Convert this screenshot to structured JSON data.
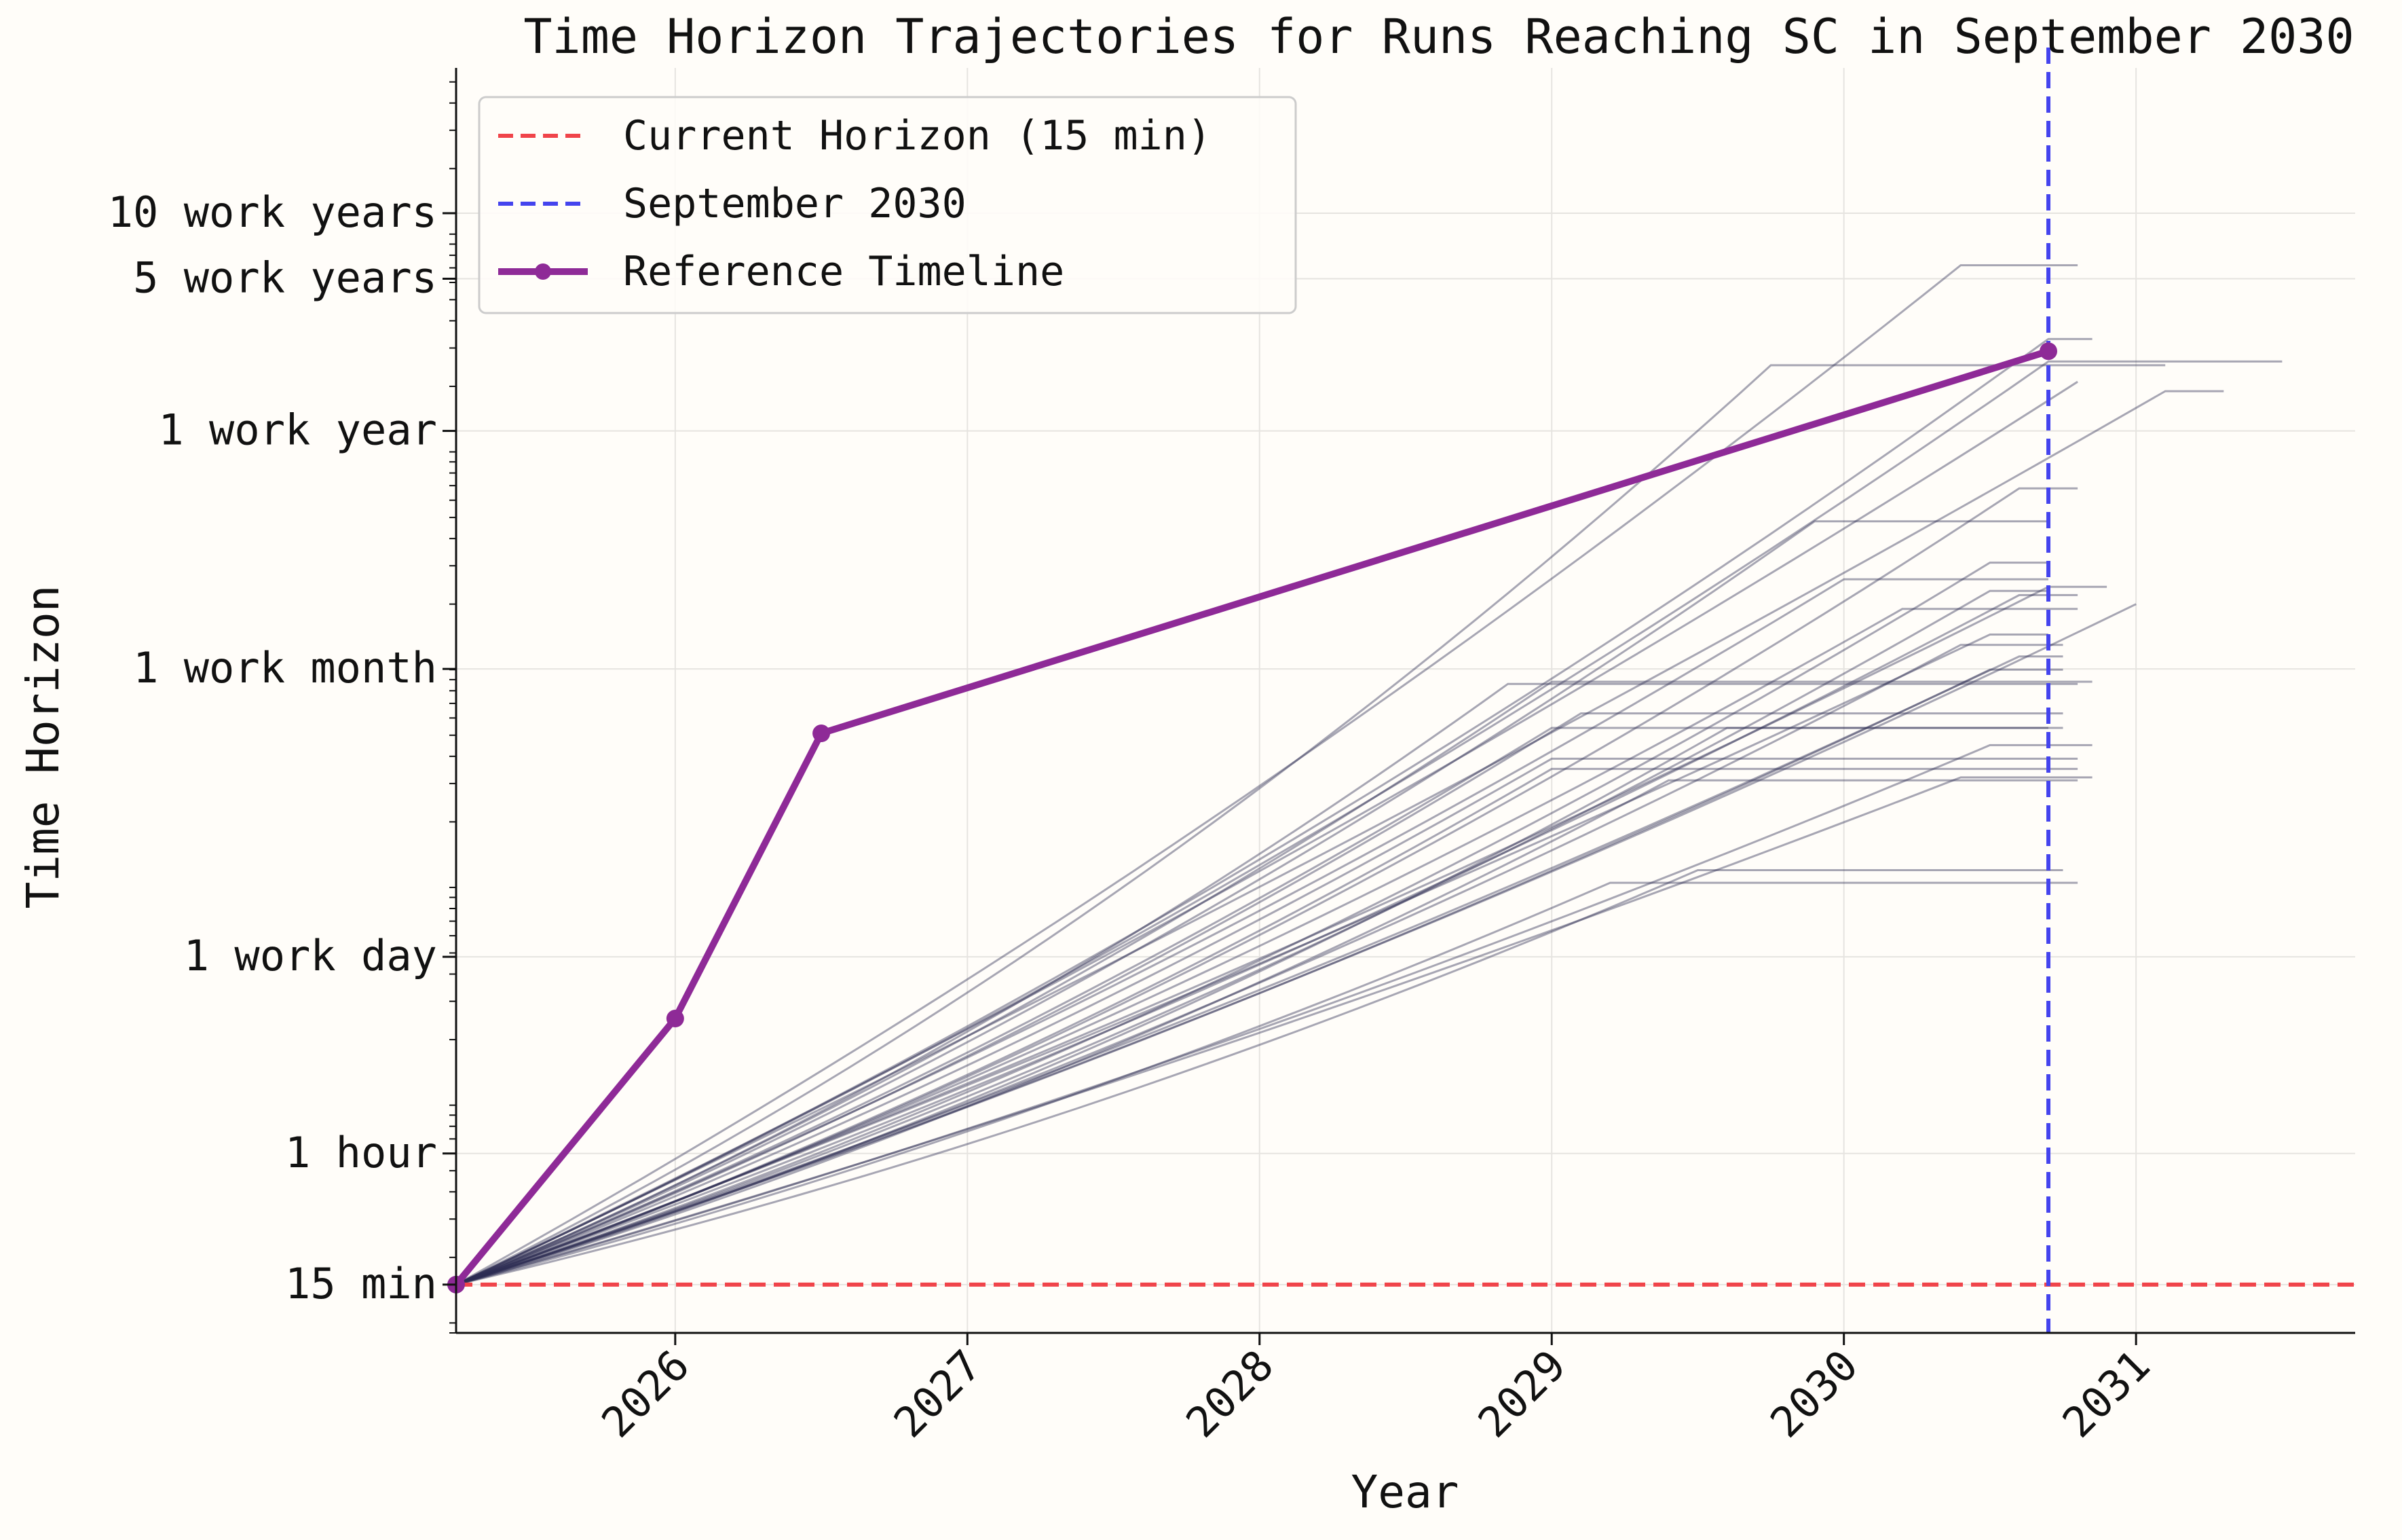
{
  "chart_data": {
    "type": "line",
    "title": "Time Horizon Trajectories for Runs Reaching SC in September 2030",
    "xlabel": "Year",
    "ylabel": "Time Horizon",
    "xlim": [
      2025.25,
      2031.75
    ],
    "ylim_minutes": [
      9.0,
      5800000
    ],
    "y_scale": "log",
    "grid": true,
    "legend_position": "top-left",
    "x_ticks": [
      {
        "value": 2026,
        "label": "2026"
      },
      {
        "value": 2027,
        "label": "2027"
      },
      {
        "value": 2028,
        "label": "2028"
      },
      {
        "value": 2029,
        "label": "2029"
      },
      {
        "value": 2030,
        "label": "2030"
      },
      {
        "value": 2031,
        "label": "2031"
      }
    ],
    "y_ticks": [
      {
        "minutes": 15,
        "label": "15 min"
      },
      {
        "minutes": 60,
        "label": "1 hour"
      },
      {
        "minutes": 480,
        "label": "1 work day"
      },
      {
        "minutes": 10080,
        "label": "1 work month"
      },
      {
        "minutes": 124800,
        "label": "1 work year"
      },
      {
        "minutes": 624000,
        "label": "5 work years"
      },
      {
        "minutes": 1248000,
        "label": "10 work years"
      }
    ],
    "legend": [
      {
        "label": "Current Horizon (15 min)",
        "style": "dashed",
        "color": "#f0444a"
      },
      {
        "label": "September 2030",
        "style": "dashed",
        "color": "#4444ee"
      },
      {
        "label": "Reference Timeline",
        "style": "solid-marker",
        "color": "#8e2a97"
      }
    ],
    "current_horizon": {
      "minutes": 15,
      "color": "#f0444a"
    },
    "target_date": {
      "x": 2030.7,
      "color": "#4444ee"
    },
    "reference_timeline": {
      "color": "#8e2a97",
      "points": [
        {
          "x": 2025.25,
          "minutes": 15
        },
        {
          "x": 2026.0,
          "minutes": 250
        },
        {
          "x": 2026.5,
          "minutes": 5100
        },
        {
          "x": 2030.7,
          "minutes": 290000
        }
      ]
    },
    "trajectories": {
      "color": "#2e2e54",
      "start": {
        "x": 2025.25,
        "minutes": 15
      },
      "runs": [
        {
          "end_x": 2030.4,
          "end_minutes": 720000,
          "flat_until": 2030.8,
          "bend": 0.18
        },
        {
          "end_x": 2029.75,
          "end_minutes": 250000,
          "flat_until": 2031.1,
          "bend": 0.3
        },
        {
          "end_x": 2030.7,
          "end_minutes": 330000,
          "flat_until": 2030.85,
          "bend": 0.22
        },
        {
          "end_x": 2030.7,
          "end_minutes": 260000,
          "flat_until": 2031.5,
          "bend": 0.2
        },
        {
          "end_x": 2030.8,
          "end_minutes": 210000,
          "flat_until": 2030.8,
          "bend": 0.15
        },
        {
          "end_x": 2031.1,
          "end_minutes": 190000,
          "flat_until": 2031.3,
          "bend": 0.1
        },
        {
          "end_x": 2030.6,
          "end_minutes": 68000,
          "flat_until": 2030.8,
          "bend": 0.3
        },
        {
          "end_x": 2029.9,
          "end_minutes": 48000,
          "flat_until": 2030.7,
          "bend": 0.25
        },
        {
          "end_x": 2030.5,
          "end_minutes": 31000,
          "flat_until": 2030.7,
          "bend": 0.3
        },
        {
          "end_x": 2030.0,
          "end_minutes": 26000,
          "flat_until": 2030.7,
          "bend": 0.2
        },
        {
          "end_x": 2030.7,
          "end_minutes": 24000,
          "flat_until": 2030.9,
          "bend": 0.15
        },
        {
          "end_x": 2030.5,
          "end_minutes": 23000,
          "flat_until": 2030.7,
          "bend": 0.28
        },
        {
          "end_x": 2031.0,
          "end_minutes": 20000,
          "flat_until": 2031.0,
          "bend": 0.2
        },
        {
          "end_x": 2030.2,
          "end_minutes": 19000,
          "flat_until": 2030.8,
          "bend": 0.22
        },
        {
          "end_x": 2030.6,
          "end_minutes": 22000,
          "flat_until": 2030.8,
          "bend": 0.2
        },
        {
          "end_x": 2030.5,
          "end_minutes": 14500,
          "flat_until": 2030.7,
          "bend": 0.12
        },
        {
          "end_x": 2030.4,
          "end_minutes": 13000,
          "flat_until": 2030.75,
          "bend": 0.25
        },
        {
          "end_x": 2030.6,
          "end_minutes": 11500,
          "flat_until": 2030.75,
          "bend": 0.18
        },
        {
          "end_x": 2030.5,
          "end_minutes": 10000,
          "flat_until": 2030.75,
          "bend": 0.2
        },
        {
          "end_x": 2029.0,
          "end_minutes": 8800,
          "flat_until": 2030.85,
          "bend": 0.22
        },
        {
          "end_x": 2028.85,
          "end_minutes": 8600,
          "flat_until": 2030.8,
          "bend": 0.26
        },
        {
          "end_x": 2029.1,
          "end_minutes": 6300,
          "flat_until": 2030.75,
          "bend": 0.22
        },
        {
          "end_x": 2029.0,
          "end_minutes": 5400,
          "flat_until": 2030.7,
          "bend": 0.2
        },
        {
          "end_x": 2029.6,
          "end_minutes": 5400,
          "flat_until": 2030.75,
          "bend": 0.3
        },
        {
          "end_x": 2029.0,
          "end_minutes": 3900,
          "flat_until": 2030.8,
          "bend": 0.2
        },
        {
          "end_x": 2029.0,
          "end_minutes": 3500,
          "flat_until": 2030.8,
          "bend": 0.24
        },
        {
          "end_x": 2029.4,
          "end_minutes": 3100,
          "flat_until": 2030.8,
          "bend": 0.28
        },
        {
          "end_x": 2030.5,
          "end_minutes": 4500,
          "flat_until": 2030.85,
          "bend": 0.2
        },
        {
          "end_x": 2030.4,
          "end_minutes": 3200,
          "flat_until": 2030.85,
          "bend": 0.15
        },
        {
          "end_x": 2029.5,
          "end_minutes": 1200,
          "flat_until": 2030.75,
          "bend": 0.3
        },
        {
          "end_x": 2029.2,
          "end_minutes": 1050,
          "flat_until": 2030.8,
          "bend": 0.25
        }
      ]
    }
  }
}
